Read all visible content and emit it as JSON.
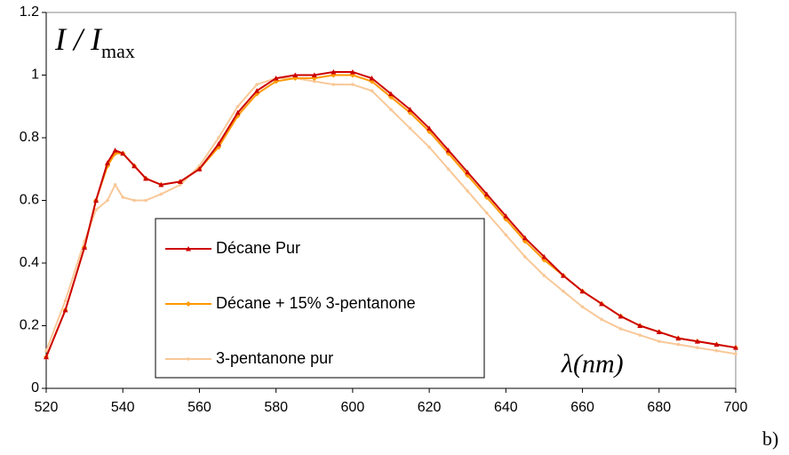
{
  "chart_data": {
    "type": "line",
    "ylabel": {
      "main": "I / I",
      "sub": "max"
    },
    "xlabel": "λ(nm)",
    "panel_label": "b)",
    "x": [
      520,
      525,
      530,
      533,
      536,
      538,
      540,
      543,
      546,
      550,
      555,
      560,
      565,
      570,
      575,
      580,
      585,
      590,
      595,
      600,
      605,
      610,
      615,
      620,
      625,
      630,
      635,
      640,
      645,
      650,
      655,
      660,
      665,
      670,
      675,
      680,
      685,
      690,
      695,
      700
    ],
    "series": [
      {
        "name": "Décane Pur",
        "color": "#cc0000",
        "marker": "triangle",
        "values": [
          0.1,
          0.25,
          0.45,
          0.6,
          0.72,
          0.76,
          0.75,
          0.71,
          0.67,
          0.65,
          0.66,
          0.7,
          0.78,
          0.88,
          0.95,
          0.99,
          1.0,
          1.0,
          1.01,
          1.01,
          0.99,
          0.94,
          0.89,
          0.83,
          0.76,
          0.69,
          0.62,
          0.55,
          0.48,
          0.42,
          0.36,
          0.31,
          0.27,
          0.23,
          0.2,
          0.18,
          0.16,
          0.15,
          0.14,
          0.13
        ]
      },
      {
        "name": "Décane + 15% 3-pentanone",
        "color": "#ff9900",
        "marker": "diamond",
        "values": [
          0.1,
          0.25,
          0.45,
          0.6,
          0.71,
          0.75,
          0.75,
          0.71,
          0.67,
          0.65,
          0.66,
          0.7,
          0.77,
          0.87,
          0.94,
          0.98,
          0.99,
          0.99,
          1.0,
          1.0,
          0.98,
          0.93,
          0.88,
          0.82,
          0.75,
          0.68,
          0.61,
          0.54,
          0.47,
          0.41,
          0.36,
          0.31,
          0.27,
          0.23,
          0.2,
          0.18,
          0.16,
          0.15,
          0.14,
          0.13
        ]
      },
      {
        "name": "3-pentanone pur",
        "color": "#f8c898",
        "marker": "dot",
        "values": [
          0.12,
          0.28,
          0.47,
          0.57,
          0.6,
          0.65,
          0.61,
          0.6,
          0.6,
          0.62,
          0.65,
          0.71,
          0.8,
          0.9,
          0.97,
          0.99,
          0.99,
          0.98,
          0.97,
          0.97,
          0.95,
          0.89,
          0.83,
          0.77,
          0.7,
          0.63,
          0.56,
          0.49,
          0.42,
          0.36,
          0.31,
          0.26,
          0.22,
          0.19,
          0.17,
          0.15,
          0.14,
          0.13,
          0.12,
          0.11
        ]
      }
    ],
    "xlim": [
      520,
      700
    ],
    "xticks": [
      520,
      540,
      560,
      580,
      600,
      620,
      640,
      660,
      680,
      700
    ],
    "ylim": [
      0,
      1.2
    ],
    "yticks": [
      0,
      0.2,
      0.4,
      0.6,
      0.8,
      1,
      1.2
    ],
    "grid": false
  }
}
